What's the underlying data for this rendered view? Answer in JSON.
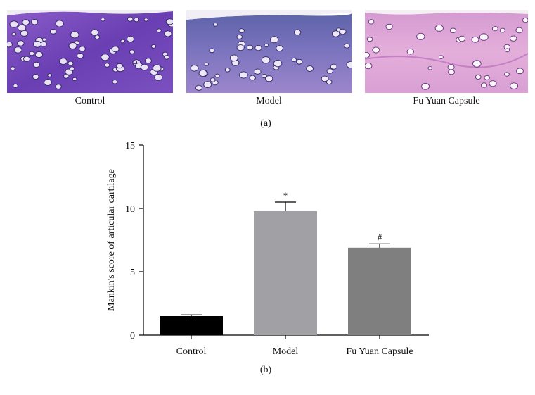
{
  "figure": {
    "panel_a_tag": "(a)",
    "panel_b_tag": "(b)"
  },
  "panel_a": {
    "images": [
      {
        "label": "Control",
        "tone": "#7b4fbf"
      },
      {
        "label": "Model",
        "tone": "#7f75bd"
      },
      {
        "label": "Fu Yuan Capsule",
        "tone": "#dca3d6"
      }
    ]
  },
  "chart_data": {
    "type": "bar",
    "categories": [
      "Control",
      "Model",
      "Fu Yuan Capsule"
    ],
    "values": [
      1.5,
      9.8,
      6.9
    ],
    "errors": [
      0.1,
      0.7,
      0.3
    ],
    "annotations": [
      "",
      "*",
      "#"
    ],
    "colors": [
      "#000000",
      "#a1a0a5",
      "#7f7f7f"
    ],
    "ylabel": "Mankin's score of articular cartilage",
    "xlabel": "",
    "ylim": [
      0,
      15
    ],
    "yticks": [
      0,
      5,
      10,
      15
    ],
    "grid": false
  }
}
